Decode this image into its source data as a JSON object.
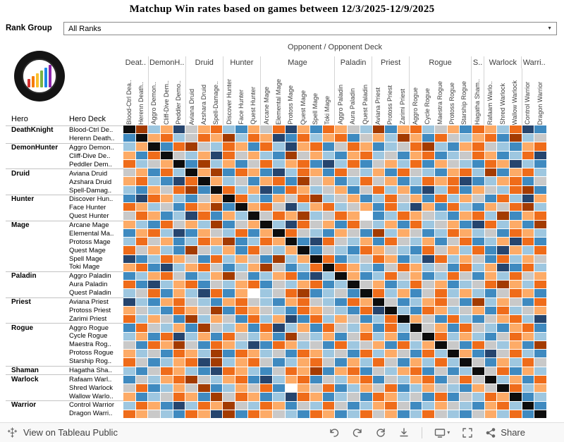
{
  "title": "Matchup Win rates based on games between 12/3/2025-12/9/2025",
  "rank_filter": {
    "label": "Rank Group",
    "value": "All Ranks"
  },
  "axis": {
    "top_label": "Opponent  /  Opponent Deck",
    "row_hero_label": "Hero",
    "row_deck_label": "Hero Deck"
  },
  "logo": {
    "bar_colors": [
      "#d32f2f",
      "#f57c00",
      "#fbc02d",
      "#7cb342",
      "#1e88e5",
      "#8e24aa"
    ]
  },
  "toolbar": {
    "view_label": "View on Tableau Public",
    "share_label": "Share",
    "icon_names": [
      "tableau-logo",
      "undo",
      "redo",
      "reset",
      "download",
      "device-preview",
      "fullscreen",
      "share"
    ]
  },
  "chart_data": {
    "type": "heatmap",
    "title": "Matchup Win rates based on games between 12/3/2025-12/9/2025",
    "x_label": "Opponent / Opponent Deck",
    "y_label": "Hero / Hero Deck",
    "column_groups": [
      {
        "label": "Deat..",
        "span": 2
      },
      {
        "label": "DemonH..",
        "span": 3
      },
      {
        "label": "Druid",
        "span": 3
      },
      {
        "label": "Hunter",
        "span": 3
      },
      {
        "label": "Mage",
        "span": 6
      },
      {
        "label": "Paladin",
        "span": 3
      },
      {
        "label": "Priest",
        "span": 3
      },
      {
        "label": "Rogue",
        "span": 5
      },
      {
        "label": "S..",
        "span": 1
      },
      {
        "label": "Warlock",
        "span": 3
      },
      {
        "label": "Warri..",
        "span": 2
      }
    ],
    "columns": [
      "Blood-Ctrl Dea..",
      "Herenn Death..",
      "Aggro Demon..",
      "Cliff-Dive Dem..",
      "Peddler Demo..",
      "Aviana Druid",
      "Azshara Druid",
      "Spell-Damage..",
      "Discover Hunter",
      "Face Hunter",
      "Quest Hunter",
      "Arcane Mage",
      "Elemental Mage",
      "Protoss Mage",
      "Quest Mage",
      "Spell Mage",
      "Toki Mage",
      "Aggro Paladin",
      "Aura Paladin",
      "Quest Paladin",
      "Aviana Priest",
      "Protoss Priest",
      "Zarimi Priest",
      "Aggro Rogue",
      "Cycle Rogue",
      "Maestra Rogue",
      "Protoss Rogue",
      "Starship Rogue",
      "Hagatha Sham..",
      "Rafaam Warlo..",
      "Shred Warlock",
      "Wallow Warlock",
      "Control Warrior",
      "Dragon Warrior"
    ],
    "row_groups": [
      {
        "hero": "DeathKnight",
        "decks": [
          "Blood-Ctrl De..",
          "Herenn Death.."
        ]
      },
      {
        "hero": "DemonHunter",
        "decks": [
          "Aggro Demon..",
          "Cliff-Dive De..",
          "Peddler Dem.."
        ]
      },
      {
        "hero": "Druid",
        "decks": [
          "Aviana Druid",
          "Azshara Druid",
          "Spell-Damag.."
        ]
      },
      {
        "hero": "Hunter",
        "decks": [
          "Discover Hun..",
          "Face Hunter",
          "Quest Hunter"
        ]
      },
      {
        "hero": "Mage",
        "decks": [
          "Arcane Mage",
          "Elemental Ma..",
          "Protoss Mage",
          "Quest Mage",
          "Spell Mage",
          "Toki Mage"
        ]
      },
      {
        "hero": "Paladin",
        "decks": [
          "Aggro Paladin",
          "Aura Paladin",
          "Quest Paladin"
        ]
      },
      {
        "hero": "Priest",
        "decks": [
          "Aviana Priest",
          "Protoss Priest",
          "Zarimi Priest"
        ]
      },
      {
        "hero": "Rogue",
        "decks": [
          "Aggro Rogue",
          "Cycle Rogue",
          "Maestra Rog..",
          "Protoss Rogue",
          "Starship Rog.."
        ]
      },
      {
        "hero": "Shaman",
        "decks": [
          "Hagatha Sha.."
        ]
      },
      {
        "hero": "Warlock",
        "decks": [
          "Rafaam Warl..",
          "Shred Warlock",
          "Wallow Warlo.."
        ]
      },
      {
        "hero": "Warrior",
        "decks": [
          "Control Warrior",
          "Dragon Warri.."
        ]
      }
    ],
    "palette": {
      "3": "#26456e",
      "2": "#3f8ac0",
      "1": "#9ec7e0",
      "0": "#c9c9c9",
      "a": "#fdab67",
      "b": "#ef6c1a",
      "c": "#a33b01",
      "K": "#0d0d0d",
      "W": "#ffffff"
    },
    "matrix": [
      "Kc1a30ab12a0b3a2ba01c2ab10a2ba1b32",
      "2Kab10bac1ba32b1ab20a1ca2b01ab2c10",
      "1aK2bc01ba2b13ab20ba210bc12ab012ab",
      "a2bK01a3b0a12c0a12ab102ab210ba21b3",
      "b10aK2c1a20b1ab231b20a1b2a012ba312",
      "0a2b1Kac2ba231ba2b01a2b012ab1c2ab1",
      "ab123bKa102ab2c0a21b0a21bab321ab20",
      "12a0bc2Kb1a32ba10a20b1a231b2a01bc2",
      "23ba120aKb12a0bc10a21b0a2b1a02b13a",
      "ba102bac2Kab031ab10a2b13a2b12a0bc1",
      "0ba213b2a1K0bac10baW21ba012ab1c2ab",
      "a12b0a1c20aK13b0a2b01a2b10a23b1a2c",
      "2ab132a01b2aKb012a02c1a021ba102ba1",
      "1b0a21bac21baK23b01a2b01a20b21a3b2",
      "b0a12c01a2b01aK2012ba012b0a1b23a1b",
      "321ba02b1a02c1aKb210ba213b1a02b1a0",
      "ab231ab021ac021bKba120ba102b1a32b1",
      "21ab021ac021ab231Ka21b0a21b02a1b0a",
      "b231ab201ab201ab21K0a21b0a210bca1b",
      "10b2a13b2aW10bc2102Kb1a20b1a120ba2",
      "312ab012ab012ab012baK021ab02c1a02b",
      "a012ba0c2ba012ba012b3K12ba10a2b10a",
      "b1a02c1a02b1a32b1a021bKa02b120ab13",
      "2b01a2c01a2b31a2b01a2b1K0a2b012ab2",
      "1a2b31a2b01a2c01a20b1a20Kb1a120ba1",
      "02bac02ba132ba102b10a2b1aK02b01a2c",
      "a102ba1c2ba102ba102b1a02b1Ka230b12",
      "b021ab3c1ab021ab02a1b02a1b1K02a1b0",
      "120ba123ba120bac2ab201ab2021K0b2a1",
      "201abc01ab231ab201ab201ab20b0K1a2b",
      "0b21a0c21a0b2Wa0b21a0b21a012a0Kb1a",
      "a210ba2c0ba213ba2102ba102b201baK21",
      "1ba231bac01ba201b021ab021a012ab1K2",
      "ba012ba3c2ba012ba21b0a21b0120a1b2K"
    ],
    "notes": "Cells encode matchup win rate as color buckets (diverging orange-gray-blue). Black diagonal = mirror matchups; white = no data. Exact percentages are not displayed in the image."
  }
}
